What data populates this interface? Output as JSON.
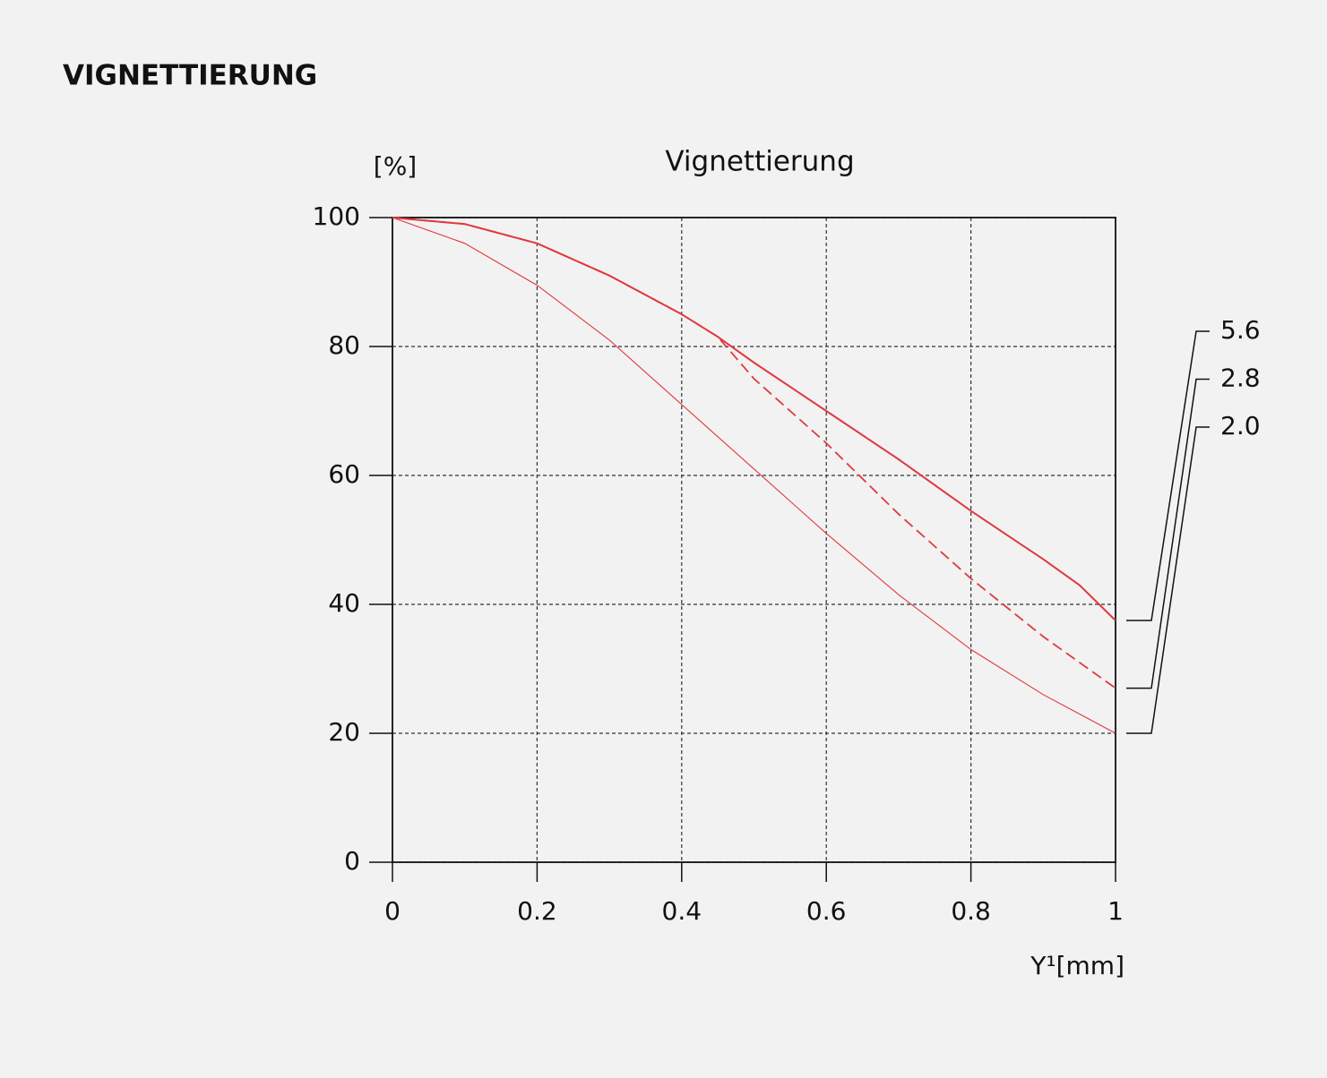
{
  "heading": "VIGNETTIERUNG",
  "chart_data": {
    "type": "line",
    "title": "Vignettierung",
    "ylabel": "[%]",
    "xlabel": "Y¹[mm]",
    "x": [
      0,
      0.1,
      0.2,
      0.3,
      0.4,
      0.45,
      0.5,
      0.6,
      0.7,
      0.8,
      0.9,
      0.95,
      1
    ],
    "series": [
      {
        "name": "5.6",
        "color": "#e0393e",
        "style": "solid",
        "values": [
          100,
          99,
          96,
          91,
          85,
          81.5,
          77.5,
          70,
          62.5,
          54.5,
          47,
          43,
          37.5
        ]
      },
      {
        "name": "2.8",
        "color": "#e0393e",
        "style": "dashed",
        "values": [
          100,
          99,
          96,
          91,
          85,
          81.5,
          75,
          65,
          54,
          44,
          35,
          31,
          27
        ]
      },
      {
        "name": "2.0",
        "color": "#e0393e",
        "style": "thin",
        "values": [
          100,
          96,
          89.5,
          81,
          71,
          66,
          61,
          51,
          41.5,
          33,
          26,
          23,
          20
        ]
      }
    ],
    "xlim": [
      0,
      1
    ],
    "ylim": [
      0,
      100
    ],
    "xticks": [
      0,
      0.2,
      0.4,
      0.6,
      0.8,
      1
    ],
    "yticks": [
      0,
      20,
      40,
      60,
      80,
      100
    ],
    "grid": true,
    "legend": "right"
  }
}
